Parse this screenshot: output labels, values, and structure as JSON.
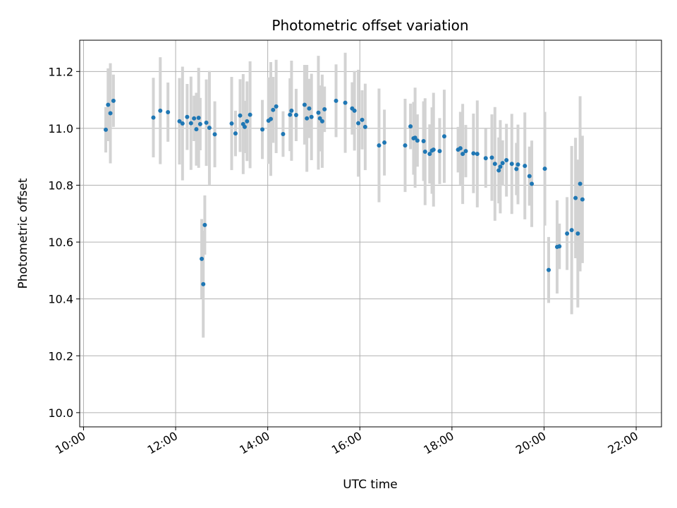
{
  "chart_data": {
    "type": "scatter",
    "title": "Photometric offset variation",
    "xlabel": "UTC time",
    "ylabel": "Photometric offset",
    "x_ticks": [
      "10:00",
      "12:00",
      "14:00",
      "16:00",
      "18:00",
      "20:00",
      "22:00"
    ],
    "y_ticks": [
      "10.0",
      "10.2",
      "10.4",
      "10.6",
      "10.8",
      "11.0",
      "11.2"
    ],
    "xlim": [
      "09:55",
      "22:33"
    ],
    "ylim": [
      9.95,
      11.31
    ],
    "grid": true,
    "colors": {
      "point": "#1f77b4",
      "errorbar": "#d3d3d3",
      "grid": "#b0b0b0"
    },
    "series": [
      {
        "x": [
          "10:29",
          "10:32",
          "10:35",
          "10:39",
          "11:31",
          "11:40",
          "11:50",
          "12:05",
          "12:09",
          "12:15",
          "12:20",
          "12:24",
          "12:27",
          "12:30",
          "12:32",
          "12:34",
          "12:36",
          "12:38",
          "12:40",
          "12:44",
          "12:51",
          "13:13",
          "13:18",
          "13:24",
          "13:28",
          "13:30",
          "13:33",
          "13:37",
          "13:53",
          "14:01",
          "14:04",
          "14:07",
          "14:11",
          "14:20",
          "14:29",
          "14:31",
          "14:37",
          "14:48",
          "14:51",
          "14:54",
          "14:57",
          "15:06",
          "15:08",
          "15:11",
          "15:14",
          "15:29",
          "15:41",
          "15:50",
          "15:53",
          "15:58",
          "16:03",
          "16:07",
          "16:25",
          "16:32",
          "16:59",
          "17:06",
          "17:10",
          "17:12",
          "17:15",
          "17:23",
          "17:25",
          "17:31",
          "17:34",
          "17:36",
          "17:44",
          "17:50",
          "18:08",
          "18:11",
          "18:14",
          "18:18",
          "18:28",
          "18:33",
          "18:44",
          "18:52",
          "18:56",
          "19:01",
          "19:03",
          "19:06",
          "19:11",
          "19:18",
          "19:24",
          "19:26",
          "19:35",
          "19:41",
          "19:44",
          "20:01",
          "20:06",
          "20:17",
          "20:20",
          "20:30",
          "20:36",
          "20:41",
          "20:44",
          "20:47",
          "20:50"
        ],
        "y": [
          10.995,
          11.083,
          11.053,
          11.097,
          11.038,
          11.062,
          11.057,
          11.025,
          11.017,
          11.04,
          11.018,
          11.035,
          10.997,
          11.037,
          11.015,
          10.541,
          10.452,
          10.66,
          11.02,
          11.002,
          10.979,
          11.017,
          10.982,
          11.045,
          11.015,
          11.005,
          11.025,
          11.048,
          10.996,
          11.027,
          11.033,
          11.065,
          11.077,
          10.98,
          11.048,
          11.062,
          11.047,
          11.083,
          11.035,
          11.07,
          11.04,
          11.055,
          11.035,
          11.025,
          11.067,
          11.097,
          11.09,
          11.07,
          11.062,
          11.018,
          11.03,
          11.005,
          10.94,
          10.95,
          10.94,
          11.007,
          10.965,
          10.967,
          10.957,
          10.955,
          10.918,
          10.91,
          10.922,
          10.925,
          10.92,
          10.972,
          10.925,
          10.93,
          10.91,
          10.92,
          10.912,
          10.91,
          10.895,
          10.897,
          10.875,
          10.852,
          10.865,
          10.878,
          10.888,
          10.875,
          10.857,
          10.873,
          10.868,
          10.832,
          10.805,
          10.858,
          10.502,
          10.583,
          10.585,
          10.63,
          10.642,
          10.755,
          10.63,
          10.805,
          10.75
        ]
      }
    ]
  }
}
